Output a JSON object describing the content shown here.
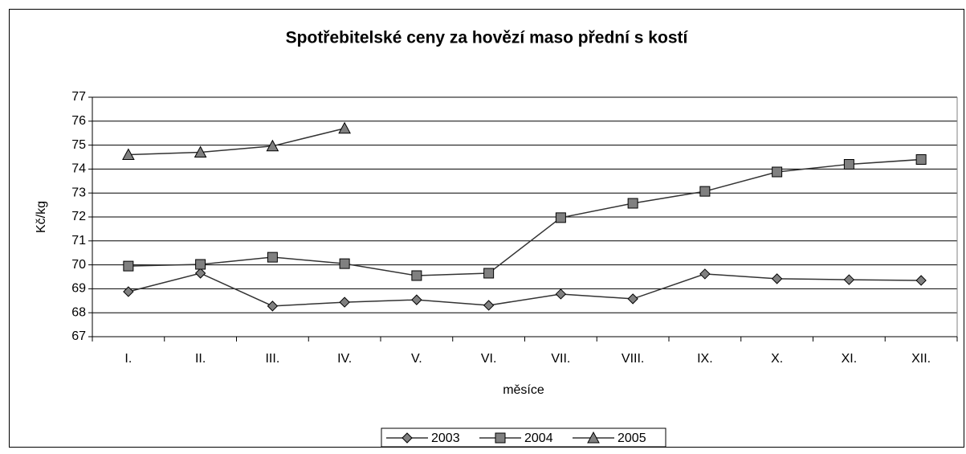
{
  "chart_data": {
    "type": "line",
    "title": "Spotřebitelské ceny za hovězí maso přední s kostí",
    "x_label": "měsíce",
    "y_label": "Kč/kg",
    "categories": [
      "I.",
      "II.",
      "III.",
      "IV.",
      "V.",
      "VI.",
      "VII.",
      "VIII.",
      "IX.",
      "X.",
      "XI.",
      "XII."
    ],
    "series": [
      {
        "name": "2003",
        "color": "#808080",
        "marker": "diamond",
        "values": [
          68.88,
          69.65,
          68.28,
          68.44,
          68.54,
          68.31,
          68.78,
          68.58,
          69.62,
          69.42,
          69.38,
          69.35
        ]
      },
      {
        "name": "2004",
        "color": "#808080",
        "marker": "square",
        "values": [
          69.95,
          70.02,
          70.32,
          70.05,
          69.55,
          69.65,
          71.97,
          72.57,
          73.07,
          73.88,
          74.2,
          74.4
        ]
      },
      {
        "name": "2005",
        "color": "#808080",
        "marker": "triangle",
        "values": [
          74.6,
          74.7,
          74.96,
          75.7,
          null,
          null,
          null,
          null,
          null,
          null,
          null,
          null
        ]
      }
    ],
    "ylim": [
      67,
      77
    ],
    "yticks": [
      67,
      68,
      69,
      70,
      71,
      72,
      73,
      74,
      75,
      76,
      77
    ],
    "grid": true,
    "legend": "bottom"
  }
}
